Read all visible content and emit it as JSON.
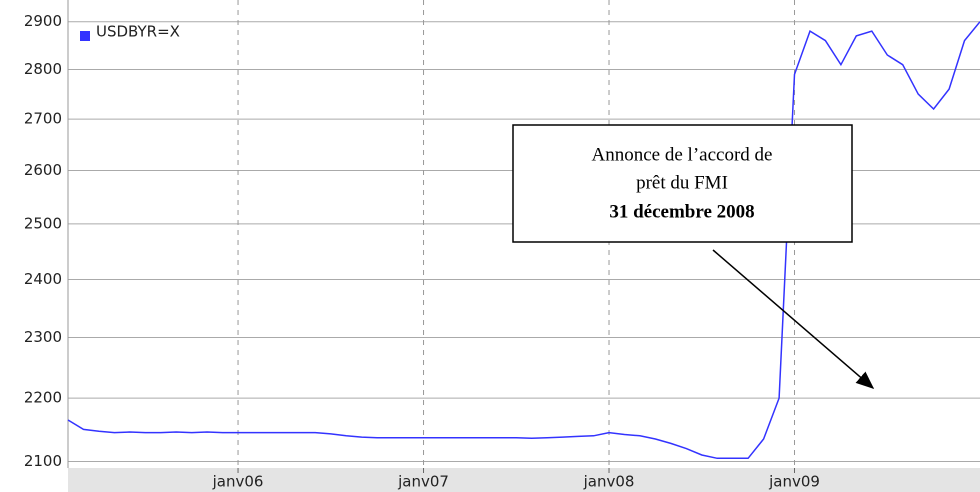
{
  "chart_data": {
    "type": "line",
    "x": [
      "2005-02",
      "2005-03",
      "2005-04",
      "2005-05",
      "2005-06",
      "2005-07",
      "2005-08",
      "2005-09",
      "2005-10",
      "2005-11",
      "2005-12",
      "2006-01",
      "2006-02",
      "2006-03",
      "2006-04",
      "2006-05",
      "2006-06",
      "2006-07",
      "2006-08",
      "2006-09",
      "2006-10",
      "2006-11",
      "2006-12",
      "2007-01",
      "2007-02",
      "2007-03",
      "2007-04",
      "2007-05",
      "2007-06",
      "2007-07",
      "2007-08",
      "2007-09",
      "2007-10",
      "2007-11",
      "2007-12",
      "2008-01",
      "2008-02",
      "2008-03",
      "2008-04",
      "2008-05",
      "2008-06",
      "2008-07",
      "2008-08",
      "2008-09",
      "2008-10",
      "2008-11",
      "2008-12",
      "2009-01",
      "2009-02",
      "2009-03",
      "2009-04",
      "2009-05",
      "2009-06",
      "2009-07",
      "2009-08",
      "2009-09",
      "2009-10",
      "2009-11",
      "2009-12",
      "2010-01"
    ],
    "series": [
      {
        "name": "USDBYR=X",
        "color": "#3333ff",
        "values": [
          2165,
          2150,
          2147,
          2145,
          2146,
          2145,
          2145,
          2146,
          2145,
          2146,
          2145,
          2145,
          2145,
          2145,
          2145,
          2145,
          2145,
          2143,
          2140,
          2138,
          2137,
          2137,
          2137,
          2137,
          2137,
          2137,
          2137,
          2137,
          2137,
          2137,
          2136,
          2137,
          2138,
          2139,
          2140,
          2145,
          2142,
          2140,
          2135,
          2128,
          2120,
          2110,
          2105,
          2105,
          2105,
          2135,
          2200,
          2790,
          2880,
          2860,
          2810,
          2870,
          2880,
          2830,
          2810,
          2750,
          2720,
          2760,
          2860,
          2900
        ]
      }
    ],
    "xlim": [
      "2005-02",
      "2010-01"
    ],
    "xticks": [
      {
        "value": "2006-01",
        "label": "janv06"
      },
      {
        "value": "2007-01",
        "label": "janv07"
      },
      {
        "value": "2008-01",
        "label": "janv08"
      },
      {
        "value": "2009-01",
        "label": "janv09"
      }
    ],
    "ylim": [
      2090,
      2925
    ],
    "yticks": [
      2100,
      2200,
      2300,
      2400,
      2500,
      2600,
      2700,
      2800,
      2900
    ],
    "log_scale": true,
    "grid": true,
    "legend": "top-left",
    "annotation": {
      "lines": [
        "Annonce de l’accord de",
        "prêt du FMI",
        "31 décembre 2008"
      ]
    }
  }
}
